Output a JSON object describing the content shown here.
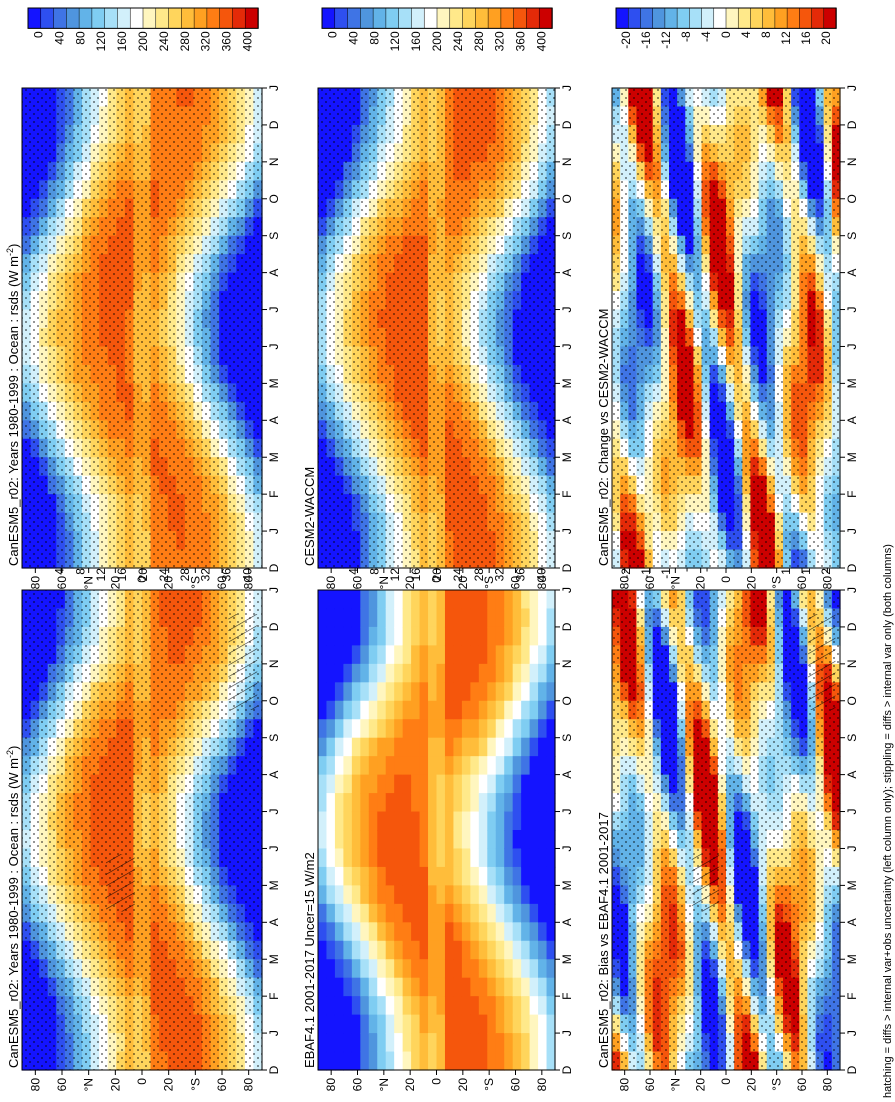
{
  "figure": {
    "footnote": "hatching = diffs > internal var+obs uncertainty (left column only); stippling = diffs > internal var only (both columns)"
  },
  "axes": {
    "lat_ticks": [
      "80",
      "60",
      "°N",
      "20",
      "0",
      "20",
      "°S",
      "60",
      "80"
    ],
    "months": [
      "D",
      "J",
      "F",
      "M",
      "A",
      "M",
      "J",
      "J",
      "A",
      "S",
      "O",
      "N",
      "D",
      "J"
    ]
  },
  "colorbars": {
    "abs": {
      "ticks": [
        "400",
        "360",
        "320",
        "280",
        "240",
        "200",
        "160",
        "120",
        "80",
        "40",
        "0"
      ]
    },
    "diff": {
      "ticks": [
        "20",
        "16",
        "12",
        "8",
        "4",
        "0",
        "-4",
        "-8",
        "-12",
        "-16",
        "-20"
      ]
    },
    "colors": [
      "#1414ff",
      "#2e4ff0",
      "#3f74e5",
      "#4f95de",
      "#62b3e8",
      "#7fcdf2",
      "#a7e0f8",
      "#d2f0fb",
      "#ffffff",
      "#fff6bf",
      "#ffe98a",
      "#ffd55c",
      "#ffbd3a",
      "#ffa021",
      "#ff7d14",
      "#f5560c",
      "#e42a08",
      "#cc0000"
    ]
  },
  "chart_data": [
    {
      "id": "model_clim",
      "type": "heatmap",
      "title": "CanESM5_r02: Years 1980-1999 : Ocean : rsds (W m⁻²)",
      "title_main": "CanESM5_r02: Years 1980-1999 : Ocean : rsds (W m",
      "title_sup": "-2",
      "title_end": ")",
      "variable": "rsds",
      "units": "W m-2",
      "x": "latitude",
      "y": "month",
      "cbar": "abs",
      "colorbar_ticks": [
        400,
        360,
        320,
        280,
        240,
        200,
        160,
        120,
        80,
        40,
        0
      ],
      "hatching": true,
      "stippling": true
    },
    {
      "id": "obs_clim",
      "type": "heatmap",
      "title": "EBAF4.1 2001-2017 Uncer=15 W/m2",
      "title_main": "EBAF4.1 2001-2017 Uncer=15 W/m2",
      "title_sup": "",
      "title_end": "",
      "variable": "rsds",
      "units": "W m-2",
      "x": "latitude",
      "y": "month",
      "cbar": "abs",
      "colorbar_ticks": [
        400,
        360,
        320,
        280,
        240,
        200,
        160,
        120,
        80,
        40,
        0
      ],
      "hatching": false,
      "stippling": false
    },
    {
      "id": "bias",
      "type": "heatmap",
      "title": "CanESM5_r02: Bias vs EBAF4.1 2001-2017",
      "title_main": "CanESM5_r02: Bias vs EBAF4.1 2001-2017",
      "title_sup": "",
      "title_end": "",
      "variable": "rsds bias",
      "units": "W m-2",
      "x": "latitude",
      "y": "month",
      "cbar": "diff",
      "colorbar_ticks": [
        20,
        16,
        12,
        8,
        4,
        0,
        -4,
        -8,
        -12,
        -16,
        -20
      ],
      "hatching": true,
      "stippling": true
    },
    {
      "id": "model_clim_2",
      "type": "heatmap",
      "title": "CanESM5_r02: Years 1980-1999 : Ocean : rsds (W m⁻²)",
      "title_main": "CanESM5_r02: Years 1980-1999 : Ocean : rsds (W m",
      "title_sup": "-2",
      "title_end": ")",
      "variable": "rsds",
      "units": "W m-2",
      "x": "latitude",
      "y": "month",
      "cbar": "abs",
      "colorbar_ticks": [
        400,
        360,
        320,
        280,
        240,
        200,
        160,
        120,
        80,
        40,
        0
      ],
      "hatching": false,
      "stippling": true
    },
    {
      "id": "ref_model",
      "type": "heatmap",
      "title": "CESM2-WACCM",
      "title_main": "CESM2-WACCM",
      "title_sup": "",
      "title_end": "",
      "variable": "rsds",
      "units": "W m-2",
      "x": "latitude",
      "y": "month",
      "cbar": "abs",
      "colorbar_ticks": [
        400,
        360,
        320,
        280,
        240,
        200,
        160,
        120,
        80,
        40,
        0
      ],
      "hatching": false,
      "stippling": true
    },
    {
      "id": "change",
      "type": "heatmap",
      "title": "CanESM5_r02: Change vs CESM2-WACCM",
      "title_main": "CanESM5_r02: Change vs CESM2-WACCM",
      "title_sup": "",
      "title_end": "",
      "variable": "rsds change",
      "units": "W m-2",
      "x": "latitude",
      "y": "month",
      "cbar": "diff",
      "colorbar_ticks": [
        20,
        16,
        12,
        8,
        4,
        0,
        -4,
        -8,
        -12,
        -16,
        -20
      ],
      "hatching": false,
      "stippling": true
    }
  ]
}
